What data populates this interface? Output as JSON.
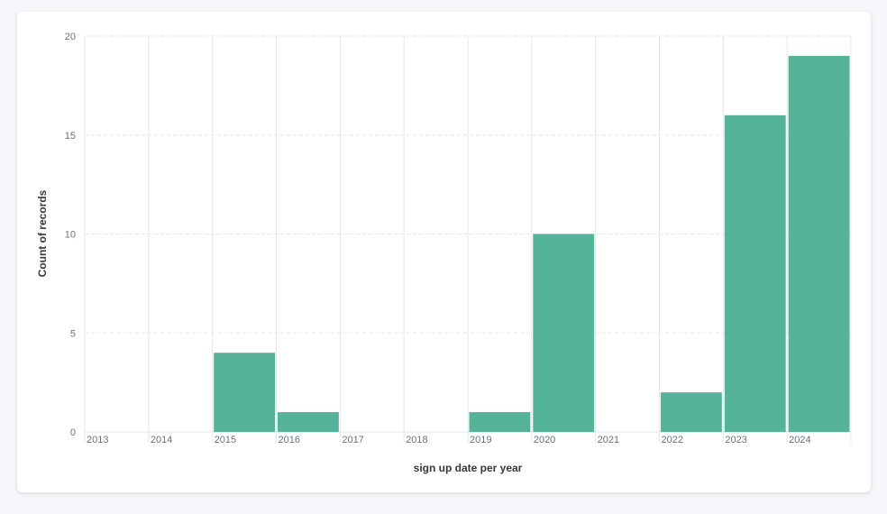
{
  "chart_data": {
    "type": "bar",
    "title": "",
    "xlabel": "sign up date per year",
    "ylabel": "Count of records",
    "categories": [
      "2013",
      "2014",
      "2015",
      "2016",
      "2017",
      "2018",
      "2019",
      "2020",
      "2021",
      "2022",
      "2023",
      "2024"
    ],
    "series": [
      {
        "values": [
          0,
          0,
          4,
          1,
          0,
          0,
          1,
          10,
          0,
          2,
          16,
          19
        ]
      }
    ],
    "ylim": [
      0,
      20
    ],
    "yticks": [
      "0",
      "5",
      "10",
      "15",
      "20"
    ],
    "grid": true,
    "colors": {
      "bar": "#54b399",
      "grid": "#e3e6eb",
      "text": "#69707d",
      "title": "#343741"
    }
  }
}
